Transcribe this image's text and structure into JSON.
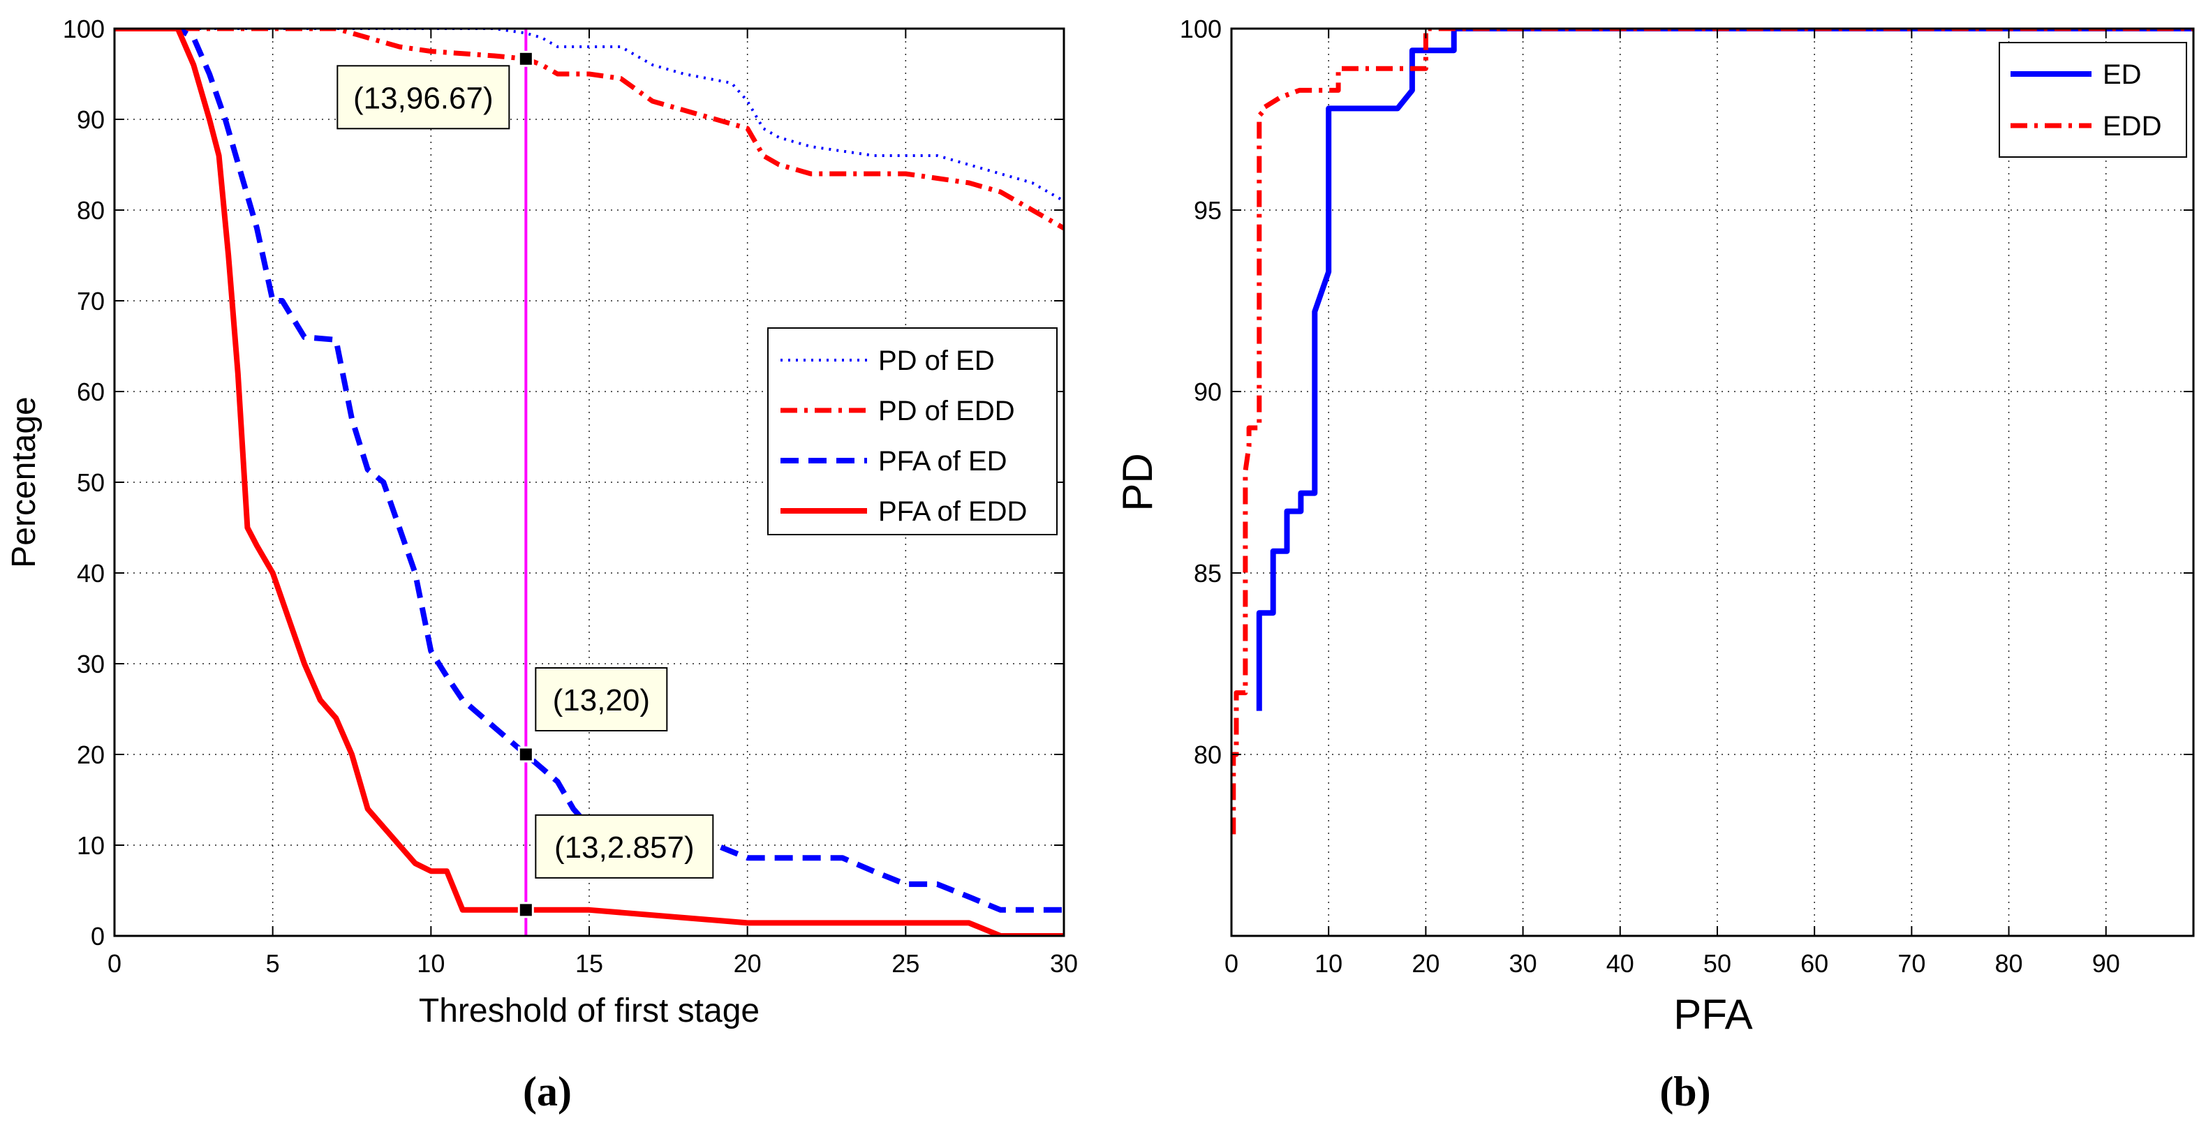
{
  "colors": {
    "blue": "#0000ff",
    "red": "#ff0000",
    "magenta": "#ff00ff",
    "annotation_fill": "#ffffe8",
    "marker": "#000000"
  },
  "chart_data": [
    {
      "id": "a",
      "type": "line",
      "panel_label": "(a)",
      "xlabel": "Threshold of first stage",
      "ylabel": "Percentage",
      "xlim": [
        0,
        30
      ],
      "ylim": [
        0,
        100
      ],
      "xticks": [
        0,
        5,
        10,
        15,
        20,
        25,
        30
      ],
      "yticks": [
        0,
        10,
        20,
        30,
        40,
        50,
        60,
        70,
        80,
        90,
        100
      ],
      "grid": true,
      "legend_position": "center-right",
      "vline_x": 13,
      "series": [
        {
          "name": "PD of ED",
          "color": "#0000ff",
          "style": "dotted",
          "x": [
            0,
            12,
            13,
            13.5,
            14,
            16,
            17,
            18,
            19.5,
            20,
            20.5,
            21,
            22,
            24,
            26,
            27,
            28,
            29,
            30
          ],
          "y": [
            100,
            100,
            99.5,
            99,
            98,
            98,
            96,
            95,
            94,
            92,
            89,
            88,
            87,
            86,
            86,
            85,
            84,
            83,
            81
          ]
        },
        {
          "name": "PD of EDD",
          "color": "#ff0000",
          "style": "dashdot",
          "x": [
            0,
            7,
            8,
            9,
            10,
            12,
            13,
            13.5,
            14,
            15,
            16,
            17,
            18,
            19,
            20,
            20.5,
            21,
            22,
            23,
            24,
            25,
            26,
            27,
            28,
            29,
            30
          ],
          "y": [
            100,
            100,
            99,
            98,
            97.5,
            97,
            96.67,
            96,
            95,
            95,
            94.5,
            92,
            91,
            90,
            89,
            86,
            85,
            84,
            84,
            84,
            84,
            83.5,
            83,
            82,
            80,
            78
          ]
        },
        {
          "name": "PFA of ED",
          "color": "#0000ff",
          "style": "dashed",
          "x": [
            0,
            2,
            2.5,
            3,
            3.5,
            4,
            4.5,
            5,
            5.3,
            6,
            7,
            7.5,
            8,
            8.5,
            9,
            9.5,
            10,
            10.5,
            11,
            12,
            13,
            14,
            14.5,
            15,
            15.5,
            16,
            17,
            18,
            19,
            20,
            21,
            22,
            23,
            24,
            25,
            26,
            27,
            28,
            29,
            30
          ],
          "y": [
            100,
            100,
            99,
            95,
            90,
            84,
            78,
            70,
            70,
            66,
            65.7,
            57,
            51.4,
            50,
            45,
            40,
            31.4,
            28.6,
            26,
            23,
            20,
            17,
            14,
            12,
            11.4,
            10.5,
            10,
            10,
            10,
            8.6,
            8.6,
            8.6,
            8.6,
            7.1,
            5.7,
            5.7,
            4.3,
            2.86,
            2.86,
            2.86
          ]
        },
        {
          "name": "PFA of EDD",
          "color": "#ff0000",
          "style": "solid",
          "x": [
            0,
            2,
            2.5,
            3,
            3.3,
            3.6,
            3.9,
            4.2,
            4.5,
            5,
            5.5,
            6,
            6.5,
            7,
            7.5,
            8,
            8.5,
            9,
            9.5,
            10,
            10.5,
            11,
            12,
            13,
            14,
            15,
            20,
            21,
            25,
            27,
            28,
            29,
            30
          ],
          "y": [
            100,
            100,
            96,
            90,
            86,
            75,
            62,
            45,
            43,
            40,
            35,
            30,
            26,
            24,
            20,
            14,
            12,
            10,
            8,
            7.14,
            7.14,
            2.86,
            2.86,
            2.86,
            2.86,
            2.86,
            1.43,
            1.43,
            1.43,
            1.43,
            0,
            0,
            0
          ]
        }
      ],
      "annotations": [
        {
          "x": 13,
          "y": 96.67,
          "text": "(13,96.67)"
        },
        {
          "x": 13,
          "y": 20,
          "text": "(13,20)"
        },
        {
          "x": 13,
          "y": 2.857,
          "text": "(13,2.857)"
        }
      ]
    },
    {
      "id": "b",
      "type": "line",
      "panel_label": "(b)",
      "xlabel": "PFA",
      "ylabel": "PD",
      "xlim": [
        0,
        99
      ],
      "ylim": [
        75,
        100
      ],
      "xticks": [
        0,
        10,
        20,
        30,
        40,
        50,
        60,
        70,
        80,
        90
      ],
      "yticks": [
        80,
        85,
        90,
        95,
        100
      ],
      "grid": true,
      "legend_position": "top-right",
      "series": [
        {
          "name": "ED",
          "color": "#0000ff",
          "style": "solid",
          "x": [
            2.86,
            2.86,
            4.29,
            4.29,
            5.71,
            5.71,
            7.14,
            7.14,
            8.57,
            8.57,
            10,
            10,
            17.1,
            18.6,
            18.6,
            22.9,
            22.9,
            99
          ],
          "y": [
            81.2,
            83.9,
            83.9,
            85.6,
            85.6,
            86.7,
            86.7,
            87.2,
            87.2,
            92.2,
            93.3,
            97.8,
            97.8,
            98.3,
            99.4,
            99.4,
            100,
            100
          ]
        },
        {
          "name": "EDD",
          "color": "#ff0000",
          "style": "dashdot",
          "x": [
            0.2,
            0.2,
            0.5,
            0.5,
            1.43,
            1.43,
            1.8,
            1.8,
            2.86,
            2.86,
            3.2,
            3.2,
            5,
            7,
            11,
            11,
            12,
            14,
            14,
            18,
            20,
            20,
            99
          ],
          "y": [
            77.8,
            80,
            80,
            81.7,
            81.7,
            87.8,
            88.5,
            89,
            89,
            97.6,
            97.7,
            97.8,
            98.1,
            98.3,
            98.3,
            98.9,
            98.9,
            98.9,
            98.9,
            98.9,
            98.9,
            100,
            100
          ]
        }
      ]
    }
  ]
}
